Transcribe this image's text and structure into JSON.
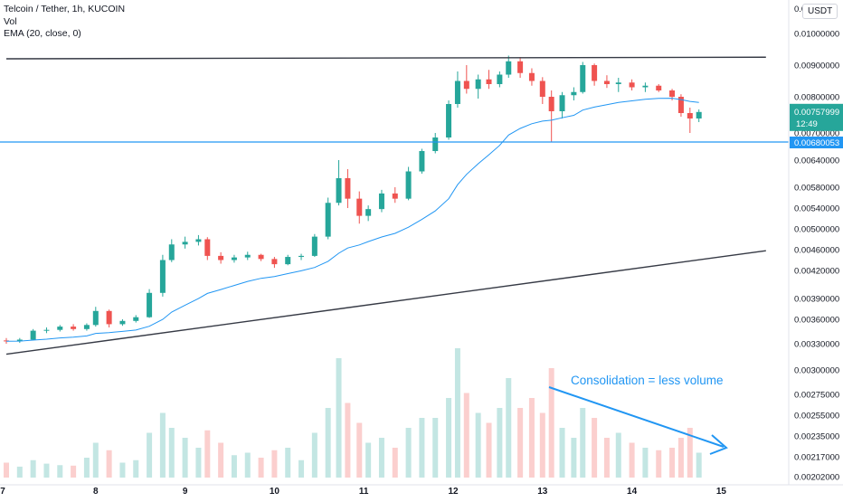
{
  "legend": {
    "symbol": "Telcoin / Tether, 1h, KUCOIN",
    "vol": "Vol",
    "ema": "EMA (20, close, 0)"
  },
  "quote_currency": "USDT",
  "annotation": "Consolidation = less volume",
  "price_axis": {
    "top_partial": "0.0...00",
    "ticks": [
      {
        "label": "0.01000000",
        "value": 0.01
      },
      {
        "label": "0.00900000",
        "value": 0.009
      },
      {
        "label": "0.00800000",
        "value": 0.008
      },
      {
        "label": "0.00700000",
        "value": 0.007
      },
      {
        "label": "0.00640000",
        "value": 0.0064
      },
      {
        "label": "0.00580000",
        "value": 0.0058
      },
      {
        "label": "0.00540000",
        "value": 0.0054
      },
      {
        "label": "0.00500000",
        "value": 0.005
      },
      {
        "label": "0.00460000",
        "value": 0.0046
      },
      {
        "label": "0.00420000",
        "value": 0.0042
      },
      {
        "label": "0.00390000",
        "value": 0.0039
      },
      {
        "label": "0.00360000",
        "value": 0.0036
      },
      {
        "label": "0.00330000",
        "value": 0.0033
      },
      {
        "label": "0.00300000",
        "value": 0.003
      },
      {
        "label": "0.00275000",
        "value": 0.00275
      },
      {
        "label": "0.00255000",
        "value": 0.00255
      },
      {
        "label": "0.00235000",
        "value": 0.00235
      },
      {
        "label": "0.00217000",
        "value": 0.00217
      },
      {
        "label": "0.00202000",
        "value": 0.00202
      }
    ]
  },
  "last_price": {
    "label": "0.00757999",
    "value": 0.00758,
    "countdown": "12:49",
    "color": "#26a69a"
  },
  "horizontal_line": {
    "label": "0.00680053",
    "value": 0.0068,
    "color": "#2196f3"
  },
  "time_axis": [
    {
      "label": "7",
      "day": 7
    },
    {
      "label": "8",
      "day": 8
    },
    {
      "label": "9",
      "day": 9
    },
    {
      "label": "10",
      "day": 10
    },
    {
      "label": "11",
      "day": 11
    },
    {
      "label": "12",
      "day": 12
    },
    {
      "label": "13",
      "day": 13
    },
    {
      "label": "14",
      "day": 14
    },
    {
      "label": "15",
      "day": 15
    }
  ],
  "colors": {
    "up": "#26a69a",
    "down": "#ef5350",
    "ema": "#2196f3",
    "trendline": "#363a45",
    "annotation": "#2196f3"
  },
  "chart_data": {
    "type": "candlestick",
    "interval": "1h",
    "x_unit": "day of month",
    "price_scale": "log",
    "trendlines": [
      {
        "name": "upper",
        "points": [
          [
            7.0,
            0.0092
          ],
          [
            15.5,
            0.00925
          ]
        ]
      },
      {
        "name": "lower",
        "points": [
          [
            7.0,
            0.00318
          ],
          [
            15.5,
            0.00458
          ]
        ]
      }
    ],
    "ema_period": 20,
    "candles": [
      {
        "x": 7.0,
        "o": 0.00334,
        "h": 0.00337,
        "l": 0.0033,
        "c": 0.00333,
        "v": 0.3
      },
      {
        "x": 7.15,
        "o": 0.00333,
        "h": 0.00337,
        "l": 0.00331,
        "c": 0.00335,
        "v": 0.22
      },
      {
        "x": 7.3,
        "o": 0.00335,
        "h": 0.00348,
        "l": 0.00334,
        "c": 0.00346,
        "v": 0.35
      },
      {
        "x": 7.45,
        "o": 0.00346,
        "h": 0.0035,
        "l": 0.00343,
        "c": 0.00347,
        "v": 0.28
      },
      {
        "x": 7.6,
        "o": 0.00347,
        "h": 0.00353,
        "l": 0.00345,
        "c": 0.00351,
        "v": 0.25
      },
      {
        "x": 7.75,
        "o": 0.00351,
        "h": 0.00354,
        "l": 0.00346,
        "c": 0.00348,
        "v": 0.24
      },
      {
        "x": 7.9,
        "o": 0.00348,
        "h": 0.00355,
        "l": 0.00346,
        "c": 0.00353,
        "v": 0.4
      },
      {
        "x": 8.0,
        "o": 0.00353,
        "h": 0.00378,
        "l": 0.00351,
        "c": 0.00372,
        "v": 0.7
      },
      {
        "x": 8.15,
        "o": 0.00372,
        "h": 0.00374,
        "l": 0.0035,
        "c": 0.00354,
        "v": 0.55
      },
      {
        "x": 8.3,
        "o": 0.00354,
        "h": 0.0036,
        "l": 0.00352,
        "c": 0.00358,
        "v": 0.3
      },
      {
        "x": 8.45,
        "o": 0.00358,
        "h": 0.00366,
        "l": 0.00356,
        "c": 0.00363,
        "v": 0.35
      },
      {
        "x": 8.6,
        "o": 0.00363,
        "h": 0.004,
        "l": 0.00362,
        "c": 0.00396,
        "v": 0.9
      },
      {
        "x": 8.75,
        "o": 0.00396,
        "h": 0.0045,
        "l": 0.00392,
        "c": 0.0044,
        "v": 1.3
      },
      {
        "x": 8.85,
        "o": 0.0044,
        "h": 0.0048,
        "l": 0.00436,
        "c": 0.0047,
        "v": 1.0
      },
      {
        "x": 9.0,
        "o": 0.0047,
        "h": 0.00485,
        "l": 0.00462,
        "c": 0.00475,
        "v": 0.8
      },
      {
        "x": 9.15,
        "o": 0.00475,
        "h": 0.00488,
        "l": 0.00468,
        "c": 0.0048,
        "v": 0.6
      },
      {
        "x": 9.25,
        "o": 0.0048,
        "h": 0.00484,
        "l": 0.0044,
        "c": 0.00448,
        "v": 0.95
      },
      {
        "x": 9.4,
        "o": 0.00448,
        "h": 0.00455,
        "l": 0.00433,
        "c": 0.0044,
        "v": 0.7
      },
      {
        "x": 9.55,
        "o": 0.0044,
        "h": 0.0045,
        "l": 0.00435,
        "c": 0.00445,
        "v": 0.45
      },
      {
        "x": 9.7,
        "o": 0.00445,
        "h": 0.00456,
        "l": 0.0044,
        "c": 0.0045,
        "v": 0.5
      },
      {
        "x": 9.85,
        "o": 0.0045,
        "h": 0.00452,
        "l": 0.00438,
        "c": 0.00442,
        "v": 0.4
      },
      {
        "x": 10.0,
        "o": 0.00442,
        "h": 0.00446,
        "l": 0.00425,
        "c": 0.00432,
        "v": 0.55
      },
      {
        "x": 10.15,
        "o": 0.00432,
        "h": 0.0045,
        "l": 0.0043,
        "c": 0.00446,
        "v": 0.6
      },
      {
        "x": 10.3,
        "o": 0.00446,
        "h": 0.00452,
        "l": 0.0044,
        "c": 0.00448,
        "v": 0.35
      },
      {
        "x": 10.45,
        "o": 0.00448,
        "h": 0.0049,
        "l": 0.00446,
        "c": 0.00485,
        "v": 0.9
      },
      {
        "x": 10.6,
        "o": 0.00485,
        "h": 0.0056,
        "l": 0.0048,
        "c": 0.0055,
        "v": 1.4
      },
      {
        "x": 10.72,
        "o": 0.0055,
        "h": 0.0064,
        "l": 0.00545,
        "c": 0.006,
        "v": 2.4
      },
      {
        "x": 10.82,
        "o": 0.006,
        "h": 0.0062,
        "l": 0.0054,
        "c": 0.00558,
        "v": 1.5
      },
      {
        "x": 10.95,
        "o": 0.00558,
        "h": 0.00572,
        "l": 0.0051,
        "c": 0.00525,
        "v": 1.1
      },
      {
        "x": 11.05,
        "o": 0.00525,
        "h": 0.00545,
        "l": 0.00515,
        "c": 0.00538,
        "v": 0.7
      },
      {
        "x": 11.2,
        "o": 0.00538,
        "h": 0.00575,
        "l": 0.00532,
        "c": 0.00568,
        "v": 0.8
      },
      {
        "x": 11.35,
        "o": 0.00568,
        "h": 0.0058,
        "l": 0.0055,
        "c": 0.00558,
        "v": 0.6
      },
      {
        "x": 11.5,
        "o": 0.00558,
        "h": 0.00625,
        "l": 0.00555,
        "c": 0.00615,
        "v": 1.0
      },
      {
        "x": 11.65,
        "o": 0.00615,
        "h": 0.00665,
        "l": 0.0061,
        "c": 0.0066,
        "v": 1.2
      },
      {
        "x": 11.8,
        "o": 0.0066,
        "h": 0.007,
        "l": 0.00655,
        "c": 0.0069,
        "v": 1.2
      },
      {
        "x": 11.95,
        "o": 0.0069,
        "h": 0.0079,
        "l": 0.00685,
        "c": 0.0078,
        "v": 1.6
      },
      {
        "x": 12.05,
        "o": 0.0078,
        "h": 0.0088,
        "l": 0.0077,
        "c": 0.0085,
        "v": 2.6
      },
      {
        "x": 12.15,
        "o": 0.0085,
        "h": 0.009,
        "l": 0.0081,
        "c": 0.00825,
        "v": 1.7
      },
      {
        "x": 12.28,
        "o": 0.00825,
        "h": 0.0087,
        "l": 0.00795,
        "c": 0.00855,
        "v": 1.3
      },
      {
        "x": 12.4,
        "o": 0.00855,
        "h": 0.00885,
        "l": 0.00825,
        "c": 0.0084,
        "v": 1.1
      },
      {
        "x": 12.52,
        "o": 0.0084,
        "h": 0.0088,
        "l": 0.0083,
        "c": 0.0087,
        "v": 1.4
      },
      {
        "x": 12.62,
        "o": 0.0087,
        "h": 0.0093,
        "l": 0.0086,
        "c": 0.00912,
        "v": 2.0
      },
      {
        "x": 12.75,
        "o": 0.00912,
        "h": 0.00925,
        "l": 0.0086,
        "c": 0.00875,
        "v": 1.4
      },
      {
        "x": 12.88,
        "o": 0.00875,
        "h": 0.0089,
        "l": 0.00835,
        "c": 0.0085,
        "v": 1.6
      },
      {
        "x": 13.0,
        "o": 0.0085,
        "h": 0.00862,
        "l": 0.0078,
        "c": 0.008,
        "v": 1.3
      },
      {
        "x": 13.1,
        "o": 0.008,
        "h": 0.0082,
        "l": 0.0068,
        "c": 0.0076,
        "v": 2.2
      },
      {
        "x": 13.22,
        "o": 0.0076,
        "h": 0.00815,
        "l": 0.0074,
        "c": 0.00805,
        "v": 1.0
      },
      {
        "x": 13.35,
        "o": 0.00805,
        "h": 0.0083,
        "l": 0.0079,
        "c": 0.00815,
        "v": 0.8
      },
      {
        "x": 13.45,
        "o": 0.00815,
        "h": 0.0091,
        "l": 0.0081,
        "c": 0.009,
        "v": 1.4
      },
      {
        "x": 13.58,
        "o": 0.009,
        "h": 0.00905,
        "l": 0.00835,
        "c": 0.0085,
        "v": 1.2
      },
      {
        "x": 13.72,
        "o": 0.0085,
        "h": 0.00868,
        "l": 0.00828,
        "c": 0.0084,
        "v": 0.8
      },
      {
        "x": 13.85,
        "o": 0.0084,
        "h": 0.0086,
        "l": 0.00815,
        "c": 0.00845,
        "v": 0.9
      },
      {
        "x": 14.0,
        "o": 0.00845,
        "h": 0.00855,
        "l": 0.0082,
        "c": 0.0083,
        "v": 0.7
      },
      {
        "x": 14.15,
        "o": 0.0083,
        "h": 0.00845,
        "l": 0.00815,
        "c": 0.00835,
        "v": 0.6
      },
      {
        "x": 14.3,
        "o": 0.00835,
        "h": 0.0084,
        "l": 0.00815,
        "c": 0.0082,
        "v": 0.55
      },
      {
        "x": 14.45,
        "o": 0.0082,
        "h": 0.00825,
        "l": 0.0079,
        "c": 0.008,
        "v": 0.6
      },
      {
        "x": 14.55,
        "o": 0.008,
        "h": 0.00808,
        "l": 0.00745,
        "c": 0.00755,
        "v": 0.8
      },
      {
        "x": 14.65,
        "o": 0.00755,
        "h": 0.0077,
        "l": 0.007,
        "c": 0.0074,
        "v": 1.0
      },
      {
        "x": 14.75,
        "o": 0.0074,
        "h": 0.00765,
        "l": 0.0073,
        "c": 0.00758,
        "v": 0.5
      }
    ]
  }
}
